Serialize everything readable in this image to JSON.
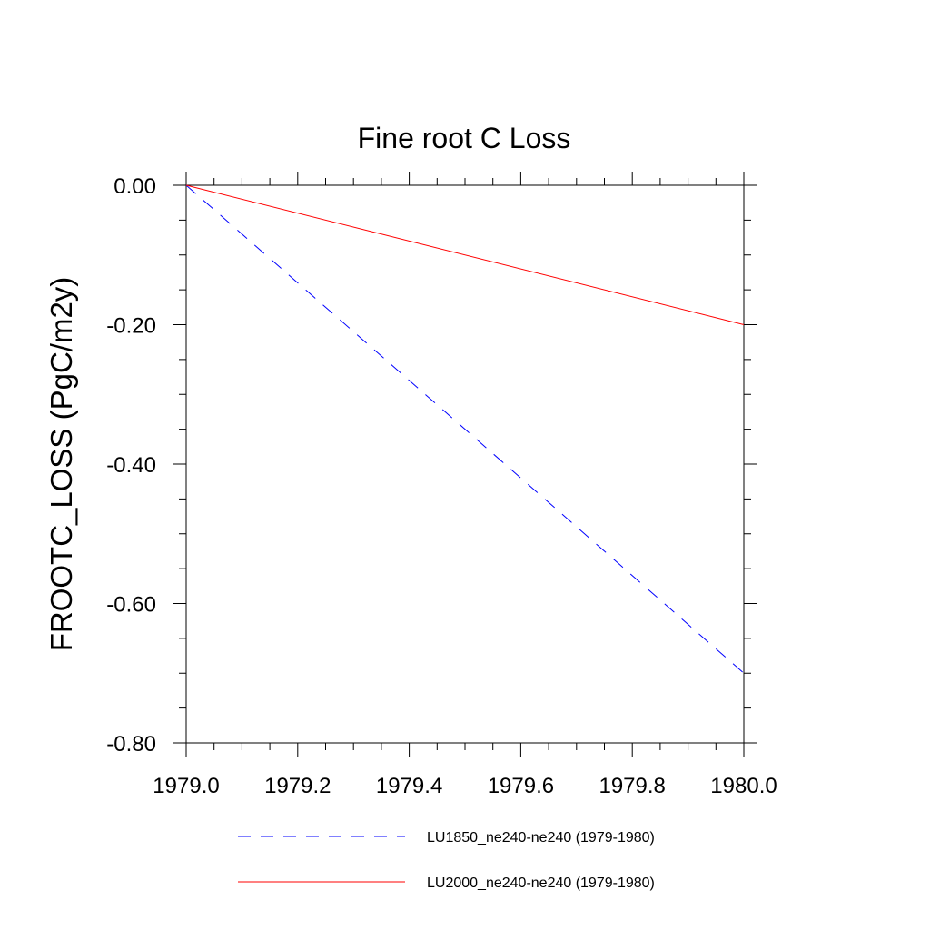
{
  "chart_data": {
    "type": "line",
    "title": "Fine root C Loss",
    "ylabel": "FROOTC_LOSS  (PgC/m2y)",
    "xlabel": "",
    "xlim": [
      1979.0,
      1980.0
    ],
    "ylim": [
      -0.8,
      0.0
    ],
    "x_ticks": [
      1979.0,
      1979.2,
      1979.4,
      1979.6,
      1979.8,
      1980.0
    ],
    "x_tick_labels": [
      "1979.0",
      "1979.2",
      "1979.4",
      "1979.6",
      "1979.8",
      "1980.0"
    ],
    "y_ticks": [
      0.0,
      -0.2,
      -0.4,
      -0.6,
      -0.8
    ],
    "y_tick_labels": [
      "0.00",
      "-0.20",
      "-0.40",
      "-0.60",
      "-0.80"
    ],
    "y_minor_step": 0.05,
    "x_minor_step": 0.05,
    "grid": false,
    "legend_position": "bottom",
    "series": [
      {
        "name": "LU1850_ne240-ne240 (1979-1980)",
        "color": "#0000ff",
        "dash": "dashed",
        "x": [
          1979.0,
          1980.0
        ],
        "y": [
          0.0,
          -0.7
        ]
      },
      {
        "name": "LU2000_ne240-ne240 (1979-1980)",
        "color": "#ff0000",
        "dash": "solid",
        "x": [
          1979.0,
          1980.0
        ],
        "y": [
          0.0,
          -0.2
        ]
      }
    ]
  }
}
